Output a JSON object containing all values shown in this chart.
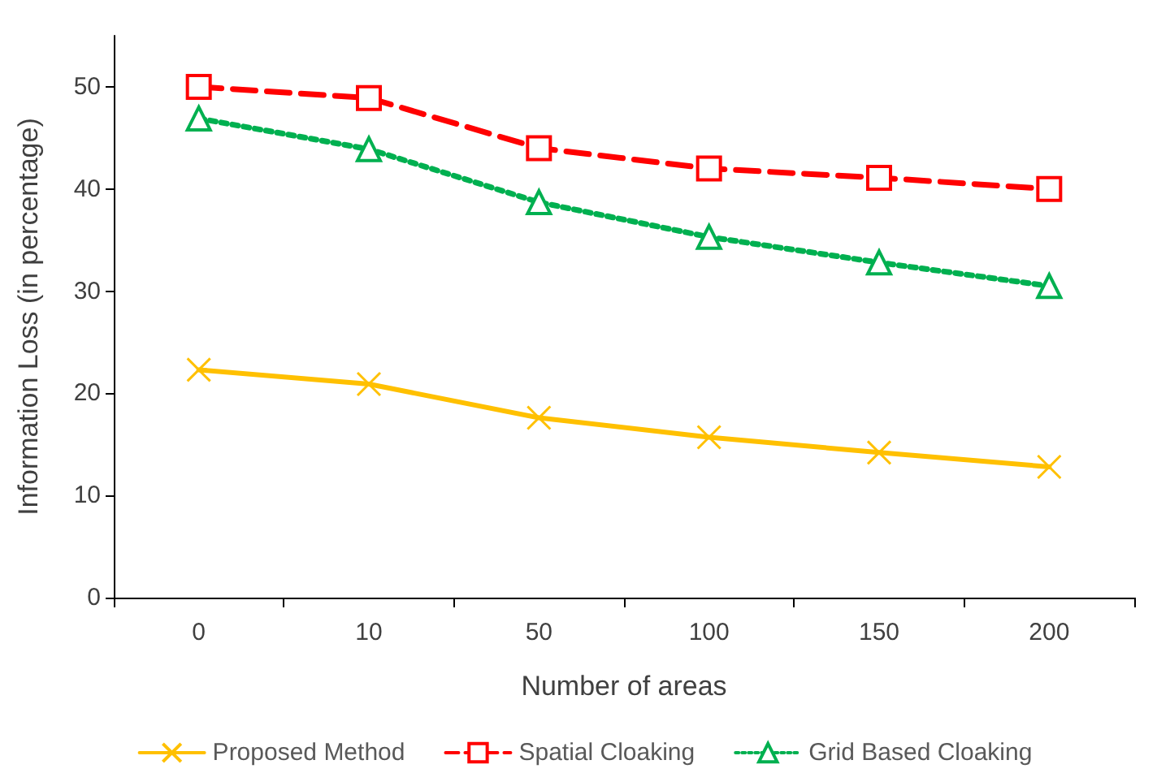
{
  "chart_data": {
    "type": "line",
    "xlabel": "Number of areas",
    "ylabel": "Information Loss (in percentage)",
    "categories": [
      "0",
      "10",
      "50",
      "100",
      "150",
      "200"
    ],
    "series": [
      {
        "name": "Proposed Method",
        "color": "#ffc000",
        "marker": "cross",
        "line_style": "solid",
        "values": [
          22.3,
          20.9,
          17.6,
          15.7,
          14.2,
          12.8
        ]
      },
      {
        "name": "Spatial Cloaking",
        "color": "#ff0000",
        "marker": "square",
        "line_style": "dashed",
        "values": [
          50,
          48.9,
          44.0,
          42.0,
          41.1,
          40
        ]
      },
      {
        "name": "Grid Based Cloaking",
        "color": "#00b050",
        "marker": "triangle",
        "line_style": "dotted",
        "values": [
          46.9,
          43.9,
          38.7,
          35.3,
          32.8,
          30.5
        ]
      }
    ],
    "ylim": [
      0,
      55
    ],
    "yticks": [
      0,
      10,
      20,
      30,
      40,
      50
    ],
    "grid": false,
    "legend": "bottom"
  }
}
